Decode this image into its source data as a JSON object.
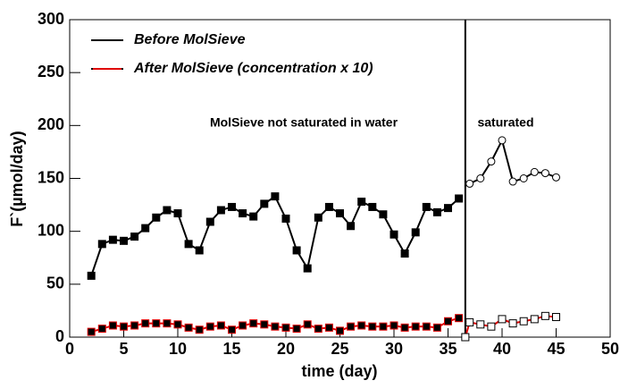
{
  "chart_data": {
    "type": "line",
    "xlabel": "time (day)",
    "ylabel": "F`(µmol/day)",
    "xlim": [
      0,
      50
    ],
    "xticks": [
      0,
      5,
      10,
      15,
      20,
      25,
      30,
      35,
      40,
      45,
      50
    ],
    "ylim": [
      0,
      300
    ],
    "yticks": [
      0,
      50,
      100,
      150,
      200,
      250,
      300
    ],
    "divider_x": 36.6,
    "annotations": [
      "MolSieve not saturated in water",
      "saturated"
    ],
    "series": [
      {
        "name": "Before MolSieve",
        "color": "#000000",
        "marker": "square-filled",
        "marker_saturated": "circle-open",
        "x": [
          2,
          3,
          4,
          5,
          6,
          7,
          8,
          9,
          10,
          11,
          12,
          13,
          14,
          15,
          16,
          17,
          18,
          19,
          20,
          21,
          22,
          23,
          24,
          25,
          26,
          27,
          28,
          29,
          30,
          31,
          32,
          33,
          34,
          35,
          36
        ],
        "values": [
          58,
          88,
          92,
          91,
          95,
          103,
          113,
          120,
          117,
          88,
          82,
          109,
          120,
          123,
          117,
          114,
          126,
          133,
          112,
          82,
          65,
          113,
          123,
          117,
          105,
          128,
          123,
          116,
          97,
          79,
          99,
          123,
          118,
          122,
          131
        ],
        "x_saturated": [
          37,
          38,
          39,
          40,
          41,
          42,
          43,
          44,
          45
        ],
        "values_saturated": [
          145,
          150,
          166,
          186,
          147,
          150,
          156,
          155,
          151
        ]
      },
      {
        "name": "After MolSieve (concentration x 10)",
        "color": "#e00000",
        "marker": "square-filled",
        "marker_saturated": "square-open",
        "x": [
          2,
          3,
          4,
          5,
          6,
          7,
          8,
          9,
          10,
          11,
          12,
          13,
          14,
          15,
          16,
          17,
          18,
          19,
          20,
          21,
          22,
          23,
          24,
          25,
          26,
          27,
          28,
          29,
          30,
          31,
          32,
          33,
          34,
          35,
          36
        ],
        "values": [
          5,
          8,
          11,
          10,
          11,
          13,
          13,
          13,
          12,
          9,
          7,
          10,
          11,
          7,
          11,
          13,
          12,
          10,
          9,
          8,
          12,
          8,
          9,
          6,
          10,
          11,
          10,
          10,
          11,
          9,
          10,
          10,
          9,
          15,
          18
        ],
        "x_saturated": [
          36.6,
          37,
          38,
          39,
          40,
          41,
          42,
          43,
          44,
          45
        ],
        "values_saturated": [
          0,
          14,
          12,
          10,
          17,
          13,
          15,
          17,
          20,
          19
        ]
      }
    ]
  }
}
